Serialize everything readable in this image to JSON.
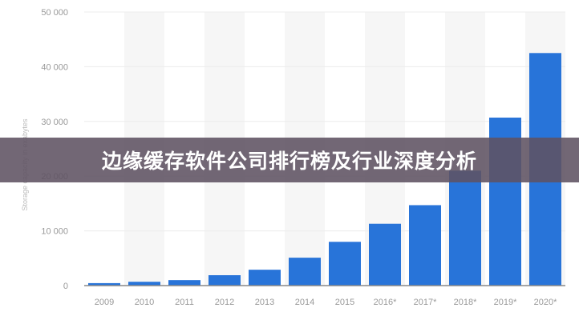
{
  "chart_data": {
    "type": "bar",
    "title": "边缘缓存软件公司排行榜及行业深度分析",
    "ylabel": "Storage capacity in exabytes",
    "xlabel": "",
    "categories": [
      "2009",
      "2010",
      "2011",
      "2012",
      "2013",
      "2014",
      "2015",
      "2016*",
      "2017*",
      "2018*",
      "2019*",
      "2020*"
    ],
    "values": [
      450,
      700,
      1000,
      1900,
      2900,
      5100,
      8000,
      11300,
      14700,
      21000,
      30700,
      42500
    ],
    "ylim": [
      0,
      50000
    ],
    "yticks": [
      0,
      10000,
      20000,
      30000,
      40000,
      50000
    ],
    "ytick_labels": [
      "0",
      "10 000",
      "20 000",
      "30 000",
      "40 000",
      "50 000"
    ],
    "grid": true,
    "bar_color": "#2874d9"
  }
}
